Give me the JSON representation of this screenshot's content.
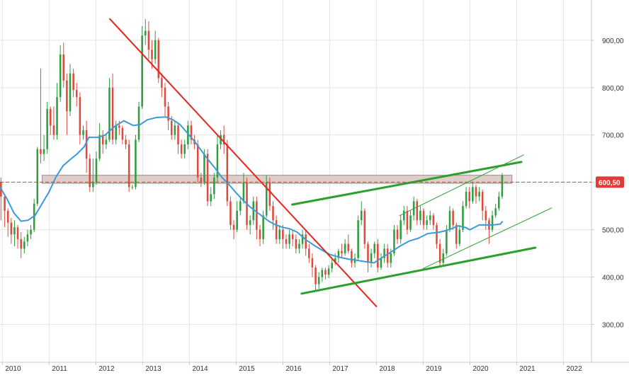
{
  "chart_data": {
    "type": "candlestick",
    "title": "",
    "xlabel": "",
    "ylabel": "",
    "y_axis_position": "right",
    "ylim": [
      220,
      985
    ],
    "y_ticks": [
      300,
      400,
      500,
      600,
      700,
      800,
      900
    ],
    "y_tick_labels": [
      "300,00",
      "400,00",
      "500,00",
      "600,00",
      "700,00",
      "800,00",
      "900,00"
    ],
    "x_range": [
      2009.95,
      2022.6
    ],
    "x_ticks": [
      2010,
      2011,
      2012,
      2013,
      2014,
      2015,
      2016,
      2017,
      2018,
      2019,
      2020,
      2021,
      2022
    ],
    "x_tick_labels": [
      "2010",
      "2011",
      "2012",
      "2013",
      "2014",
      "2015",
      "2016",
      "2017",
      "2018",
      "2019",
      "2020",
      "2021",
      "2022"
    ],
    "grid": true,
    "current_price": {
      "value": 600.5,
      "label": "600,50",
      "color": "#e53935"
    },
    "colors": {
      "up": "#2e9e3e",
      "down": "#dd4b3f",
      "moving_average": "#3d9ad9",
      "downtrend": "#e8231b",
      "uptrend": "#2ca02c",
      "zone_fill": "#d8c4c0",
      "zone_stroke": "#a08a86"
    },
    "resistance_zone": {
      "y1": 598,
      "y2": 615
    },
    "trend_lines": [
      {
        "name": "downtrend",
        "color": "#e8231b",
        "width": 2,
        "points": [
          [
            2012.3,
            945
          ],
          [
            2018.0,
            338
          ]
        ]
      },
      {
        "name": "upper-channel",
        "color": "#2ca02c",
        "width": 3,
        "points": [
          [
            2016.2,
            553
          ],
          [
            2021.1,
            643
          ]
        ]
      },
      {
        "name": "lower-channel",
        "color": "#2ca02c",
        "width": 3,
        "points": [
          [
            2016.4,
            365
          ],
          [
            2021.4,
            462
          ]
        ]
      },
      {
        "name": "inner-upper",
        "color": "#2ca02c",
        "width": 1,
        "points": [
          [
            2018.5,
            530
          ],
          [
            2021.15,
            658
          ]
        ]
      },
      {
        "name": "inner-lower",
        "color": "#2ca02c",
        "width": 1,
        "points": [
          [
            2019.0,
            418
          ],
          [
            2021.75,
            546
          ]
        ]
      }
    ],
    "moving_average": [
      [
        2009.95,
        590
      ],
      [
        2010.1,
        565
      ],
      [
        2010.25,
        535
      ],
      [
        2010.4,
        518
      ],
      [
        2010.55,
        520
      ],
      [
        2010.7,
        530
      ],
      [
        2010.85,
        555
      ],
      [
        2011.0,
        580
      ],
      [
        2011.15,
        612
      ],
      [
        2011.3,
        635
      ],
      [
        2011.45,
        648
      ],
      [
        2011.6,
        660
      ],
      [
        2011.75,
        675
      ],
      [
        2011.85,
        695
      ],
      [
        2012.05,
        695
      ],
      [
        2012.2,
        700
      ],
      [
        2012.4,
        718
      ],
      [
        2012.6,
        730
      ],
      [
        2012.8,
        720
      ],
      [
        2012.95,
        722
      ],
      [
        2013.1,
        732
      ],
      [
        2013.3,
        737
      ],
      [
        2013.5,
        738
      ],
      [
        2013.65,
        732
      ],
      [
        2013.8,
        722
      ],
      [
        2013.95,
        705
      ],
      [
        2014.1,
        688
      ],
      [
        2014.25,
        668
      ],
      [
        2014.4,
        648
      ],
      [
        2014.55,
        630
      ],
      [
        2014.7,
        610
      ],
      [
        2014.85,
        595
      ],
      [
        2015.0,
        578
      ],
      [
        2015.15,
        562
      ],
      [
        2015.3,
        548
      ],
      [
        2015.5,
        533
      ],
      [
        2015.7,
        518
      ],
      [
        2015.85,
        510
      ],
      [
        2016.0,
        505
      ],
      [
        2016.15,
        502
      ],
      [
        2016.3,
        495
      ],
      [
        2016.5,
        478
      ],
      [
        2016.7,
        465
      ],
      [
        2016.85,
        456
      ],
      [
        2017.0,
        448
      ],
      [
        2017.2,
        442
      ],
      [
        2017.4,
        438
      ],
      [
        2017.6,
        435
      ],
      [
        2017.8,
        432
      ],
      [
        2017.95,
        430
      ],
      [
        2018.1,
        440
      ],
      [
        2018.3,
        452
      ],
      [
        2018.5,
        465
      ],
      [
        2018.7,
        476
      ],
      [
        2018.9,
        482
      ],
      [
        2019.1,
        492
      ],
      [
        2019.3,
        494
      ],
      [
        2019.45,
        497
      ],
      [
        2019.6,
        502
      ],
      [
        2019.75,
        508
      ],
      [
        2019.9,
        505
      ],
      [
        2020.0,
        500
      ],
      [
        2020.2,
        510
      ],
      [
        2020.35,
        510
      ],
      [
        2020.5,
        510
      ],
      [
        2020.65,
        512
      ],
      [
        2020.7,
        518
      ]
    ],
    "candles": [
      [
        2009.97,
        600,
        570,
        610,
        520
      ],
      [
        2010.05,
        570,
        540,
        575,
        505
      ],
      [
        2010.12,
        540,
        515,
        545,
        485
      ],
      [
        2010.19,
        515,
        490,
        525,
        470
      ],
      [
        2010.26,
        490,
        505,
        520,
        465
      ],
      [
        2010.33,
        505,
        480,
        510,
        460
      ],
      [
        2010.4,
        480,
        460,
        495,
        440
      ],
      [
        2010.47,
        460,
        475,
        485,
        450
      ],
      [
        2010.54,
        475,
        490,
        500,
        465
      ],
      [
        2010.61,
        490,
        500,
        510,
        480
      ],
      [
        2010.68,
        500,
        555,
        565,
        495
      ],
      [
        2010.75,
        555,
        670,
        675,
        550
      ],
      [
        2010.82,
        670,
        660,
        840,
        640
      ],
      [
        2010.89,
        660,
        670,
        700,
        645
      ],
      [
        2010.96,
        670,
        755,
        770,
        660
      ],
      [
        2011.03,
        755,
        720,
        760,
        700
      ],
      [
        2011.1,
        720,
        700,
        760,
        690
      ],
      [
        2011.17,
        700,
        780,
        810,
        690
      ],
      [
        2011.24,
        780,
        870,
        890,
        770
      ],
      [
        2011.31,
        870,
        815,
        895,
        800
      ],
      [
        2011.38,
        815,
        750,
        830,
        700
      ],
      [
        2011.45,
        750,
        830,
        850,
        740
      ],
      [
        2011.52,
        830,
        795,
        840,
        780
      ],
      [
        2011.59,
        795,
        780,
        810,
        760
      ],
      [
        2011.66,
        780,
        700,
        790,
        680
      ],
      [
        2011.73,
        700,
        710,
        720,
        690
      ],
      [
        2011.8,
        710,
        650,
        730,
        620
      ],
      [
        2011.87,
        650,
        590,
        660,
        580
      ],
      [
        2011.94,
        590,
        600,
        650,
        580
      ],
      [
        2012.01,
        600,
        650,
        665,
        595
      ],
      [
        2012.08,
        650,
        700,
        725,
        645
      ],
      [
        2012.15,
        700,
        680,
        710,
        660
      ],
      [
        2012.22,
        680,
        690,
        700,
        670
      ],
      [
        2012.29,
        690,
        800,
        820,
        685
      ],
      [
        2012.36,
        800,
        690,
        830,
        680
      ],
      [
        2012.43,
        690,
        720,
        730,
        680
      ],
      [
        2012.5,
        720,
        715,
        730,
        700
      ],
      [
        2012.57,
        715,
        690,
        720,
        680
      ],
      [
        2012.64,
        690,
        680,
        700,
        670
      ],
      [
        2012.71,
        680,
        590,
        690,
        580
      ],
      [
        2012.78,
        590,
        590,
        595,
        585
      ],
      [
        2012.85,
        590,
        690,
        700,
        585
      ],
      [
        2012.92,
        690,
        760,
        770,
        685
      ],
      [
        2012.99,
        760,
        910,
        930,
        755
      ],
      [
        2013.06,
        910,
        920,
        945,
        890
      ],
      [
        2013.13,
        920,
        880,
        940,
        860
      ],
      [
        2013.2,
        880,
        860,
        900,
        840
      ],
      [
        2013.27,
        860,
        900,
        920,
        850
      ],
      [
        2013.34,
        900,
        820,
        905,
        810
      ],
      [
        2013.41,
        820,
        800,
        830,
        780
      ],
      [
        2013.48,
        800,
        760,
        810,
        740
      ],
      [
        2013.55,
        760,
        730,
        770,
        710
      ],
      [
        2013.62,
        730,
        700,
        740,
        690
      ],
      [
        2013.69,
        700,
        720,
        730,
        690
      ],
      [
        2013.76,
        720,
        680,
        725,
        660
      ],
      [
        2013.83,
        680,
        660,
        690,
        650
      ],
      [
        2013.9,
        660,
        680,
        690,
        650
      ],
      [
        2013.97,
        680,
        720,
        730,
        670
      ],
      [
        2014.04,
        720,
        690,
        730,
        680
      ],
      [
        2014.11,
        690,
        680,
        700,
        670
      ],
      [
        2014.18,
        680,
        610,
        690,
        600
      ],
      [
        2014.25,
        610,
        600,
        620,
        590
      ],
      [
        2014.32,
        600,
        660,
        670,
        595
      ],
      [
        2014.39,
        660,
        560,
        670,
        550
      ],
      [
        2014.46,
        560,
        575,
        590,
        550
      ],
      [
        2014.53,
        575,
        610,
        620,
        565
      ],
      [
        2014.6,
        610,
        680,
        700,
        600
      ],
      [
        2014.67,
        680,
        700,
        710,
        670
      ],
      [
        2014.74,
        700,
        680,
        720,
        660
      ],
      [
        2014.81,
        680,
        560,
        690,
        550
      ],
      [
        2014.88,
        560,
        510,
        570,
        500
      ],
      [
        2014.95,
        510,
        500,
        520,
        480
      ],
      [
        2015.02,
        500,
        540,
        560,
        495
      ],
      [
        2015.09,
        540,
        560,
        570,
        530
      ],
      [
        2015.16,
        560,
        600,
        620,
        555
      ],
      [
        2015.23,
        600,
        510,
        610,
        500
      ],
      [
        2015.3,
        510,
        520,
        530,
        490
      ],
      [
        2015.37,
        520,
        560,
        570,
        510
      ],
      [
        2015.44,
        560,
        500,
        570,
        480
      ],
      [
        2015.51,
        500,
        480,
        510,
        465
      ],
      [
        2015.58,
        480,
        530,
        540,
        470
      ],
      [
        2015.65,
        530,
        600,
        615,
        525
      ],
      [
        2015.72,
        600,
        550,
        610,
        540
      ],
      [
        2015.79,
        550,
        520,
        560,
        500
      ],
      [
        2015.86,
        520,
        480,
        530,
        470
      ],
      [
        2015.93,
        480,
        500,
        510,
        470
      ],
      [
        2016.0,
        500,
        480,
        510,
        460
      ],
      [
        2016.07,
        480,
        470,
        490,
        460
      ],
      [
        2016.14,
        470,
        490,
        500,
        460
      ],
      [
        2016.21,
        490,
        480,
        500,
        465
      ],
      [
        2016.28,
        480,
        460,
        490,
        450
      ],
      [
        2016.35,
        460,
        470,
        480,
        450
      ],
      [
        2016.42,
        470,
        490,
        500,
        460
      ],
      [
        2016.49,
        490,
        460,
        500,
        445
      ],
      [
        2016.56,
        460,
        440,
        470,
        430
      ],
      [
        2016.63,
        440,
        420,
        450,
        400
      ],
      [
        2016.7,
        420,
        385,
        425,
        370
      ],
      [
        2016.77,
        385,
        400,
        410,
        375
      ],
      [
        2016.84,
        400,
        415,
        420,
        390
      ],
      [
        2016.91,
        415,
        405,
        420,
        395
      ],
      [
        2016.98,
        405,
        418,
        425,
        398
      ],
      [
        2017.05,
        418,
        430,
        440,
        410
      ],
      [
        2017.12,
        430,
        440,
        450,
        425
      ],
      [
        2017.19,
        440,
        455,
        460,
        430
      ],
      [
        2017.26,
        455,
        450,
        470,
        440
      ],
      [
        2017.33,
        450,
        470,
        480,
        445
      ],
      [
        2017.4,
        470,
        455,
        490,
        450
      ],
      [
        2017.47,
        455,
        430,
        460,
        420
      ],
      [
        2017.54,
        430,
        440,
        450,
        420
      ],
      [
        2017.61,
        440,
        520,
        530,
        435
      ],
      [
        2017.68,
        520,
        540,
        560,
        510
      ],
      [
        2017.75,
        540,
        470,
        545,
        460
      ],
      [
        2017.82,
        470,
        430,
        475,
        410
      ],
      [
        2017.89,
        430,
        450,
        460,
        420
      ],
      [
        2017.96,
        450,
        470,
        475,
        440
      ],
      [
        2018.03,
        470,
        420,
        480,
        410
      ],
      [
        2018.1,
        420,
        440,
        450,
        415
      ],
      [
        2018.17,
        440,
        460,
        470,
        430
      ],
      [
        2018.24,
        460,
        430,
        470,
        420
      ],
      [
        2018.31,
        430,
        450,
        460,
        420
      ],
      [
        2018.38,
        450,
        500,
        510,
        445
      ],
      [
        2018.45,
        500,
        480,
        510,
        470
      ],
      [
        2018.52,
        480,
        520,
        530,
        470
      ],
      [
        2018.59,
        520,
        540,
        550,
        510
      ],
      [
        2018.66,
        540,
        500,
        550,
        490
      ],
      [
        2018.73,
        500,
        530,
        540,
        495
      ],
      [
        2018.8,
        530,
        560,
        570,
        520
      ],
      [
        2018.87,
        560,
        520,
        565,
        510
      ],
      [
        2018.94,
        520,
        540,
        550,
        510
      ],
      [
        2019.01,
        540,
        510,
        545,
        500
      ],
      [
        2019.08,
        510,
        520,
        530,
        500
      ],
      [
        2019.15,
        520,
        530,
        540,
        510
      ],
      [
        2019.22,
        530,
        510,
        535,
        500
      ],
      [
        2019.29,
        510,
        470,
        515,
        460
      ],
      [
        2019.36,
        470,
        430,
        480,
        420
      ],
      [
        2019.43,
        430,
        450,
        460,
        425
      ],
      [
        2019.5,
        450,
        500,
        510,
        445
      ],
      [
        2019.57,
        500,
        540,
        550,
        495
      ],
      [
        2019.64,
        540,
        510,
        545,
        500
      ],
      [
        2019.71,
        510,
        470,
        515,
        460
      ],
      [
        2019.78,
        470,
        500,
        510,
        465
      ],
      [
        2019.85,
        500,
        550,
        560,
        495
      ],
      [
        2019.92,
        550,
        580,
        590,
        545
      ],
      [
        2019.99,
        580,
        560,
        590,
        545
      ],
      [
        2020.06,
        560,
        590,
        600,
        555
      ],
      [
        2020.13,
        590,
        570,
        595,
        555
      ],
      [
        2020.2,
        570,
        580,
        590,
        560
      ],
      [
        2020.27,
        580,
        540,
        585,
        520
      ],
      [
        2020.34,
        540,
        520,
        550,
        500
      ],
      [
        2020.41,
        520,
        500,
        525,
        470
      ],
      [
        2020.48,
        500,
        530,
        540,
        495
      ],
      [
        2020.55,
        530,
        545,
        555,
        525
      ],
      [
        2020.62,
        545,
        570,
        580,
        540
      ],
      [
        2020.69,
        570,
        615,
        620,
        565
      ]
    ]
  }
}
